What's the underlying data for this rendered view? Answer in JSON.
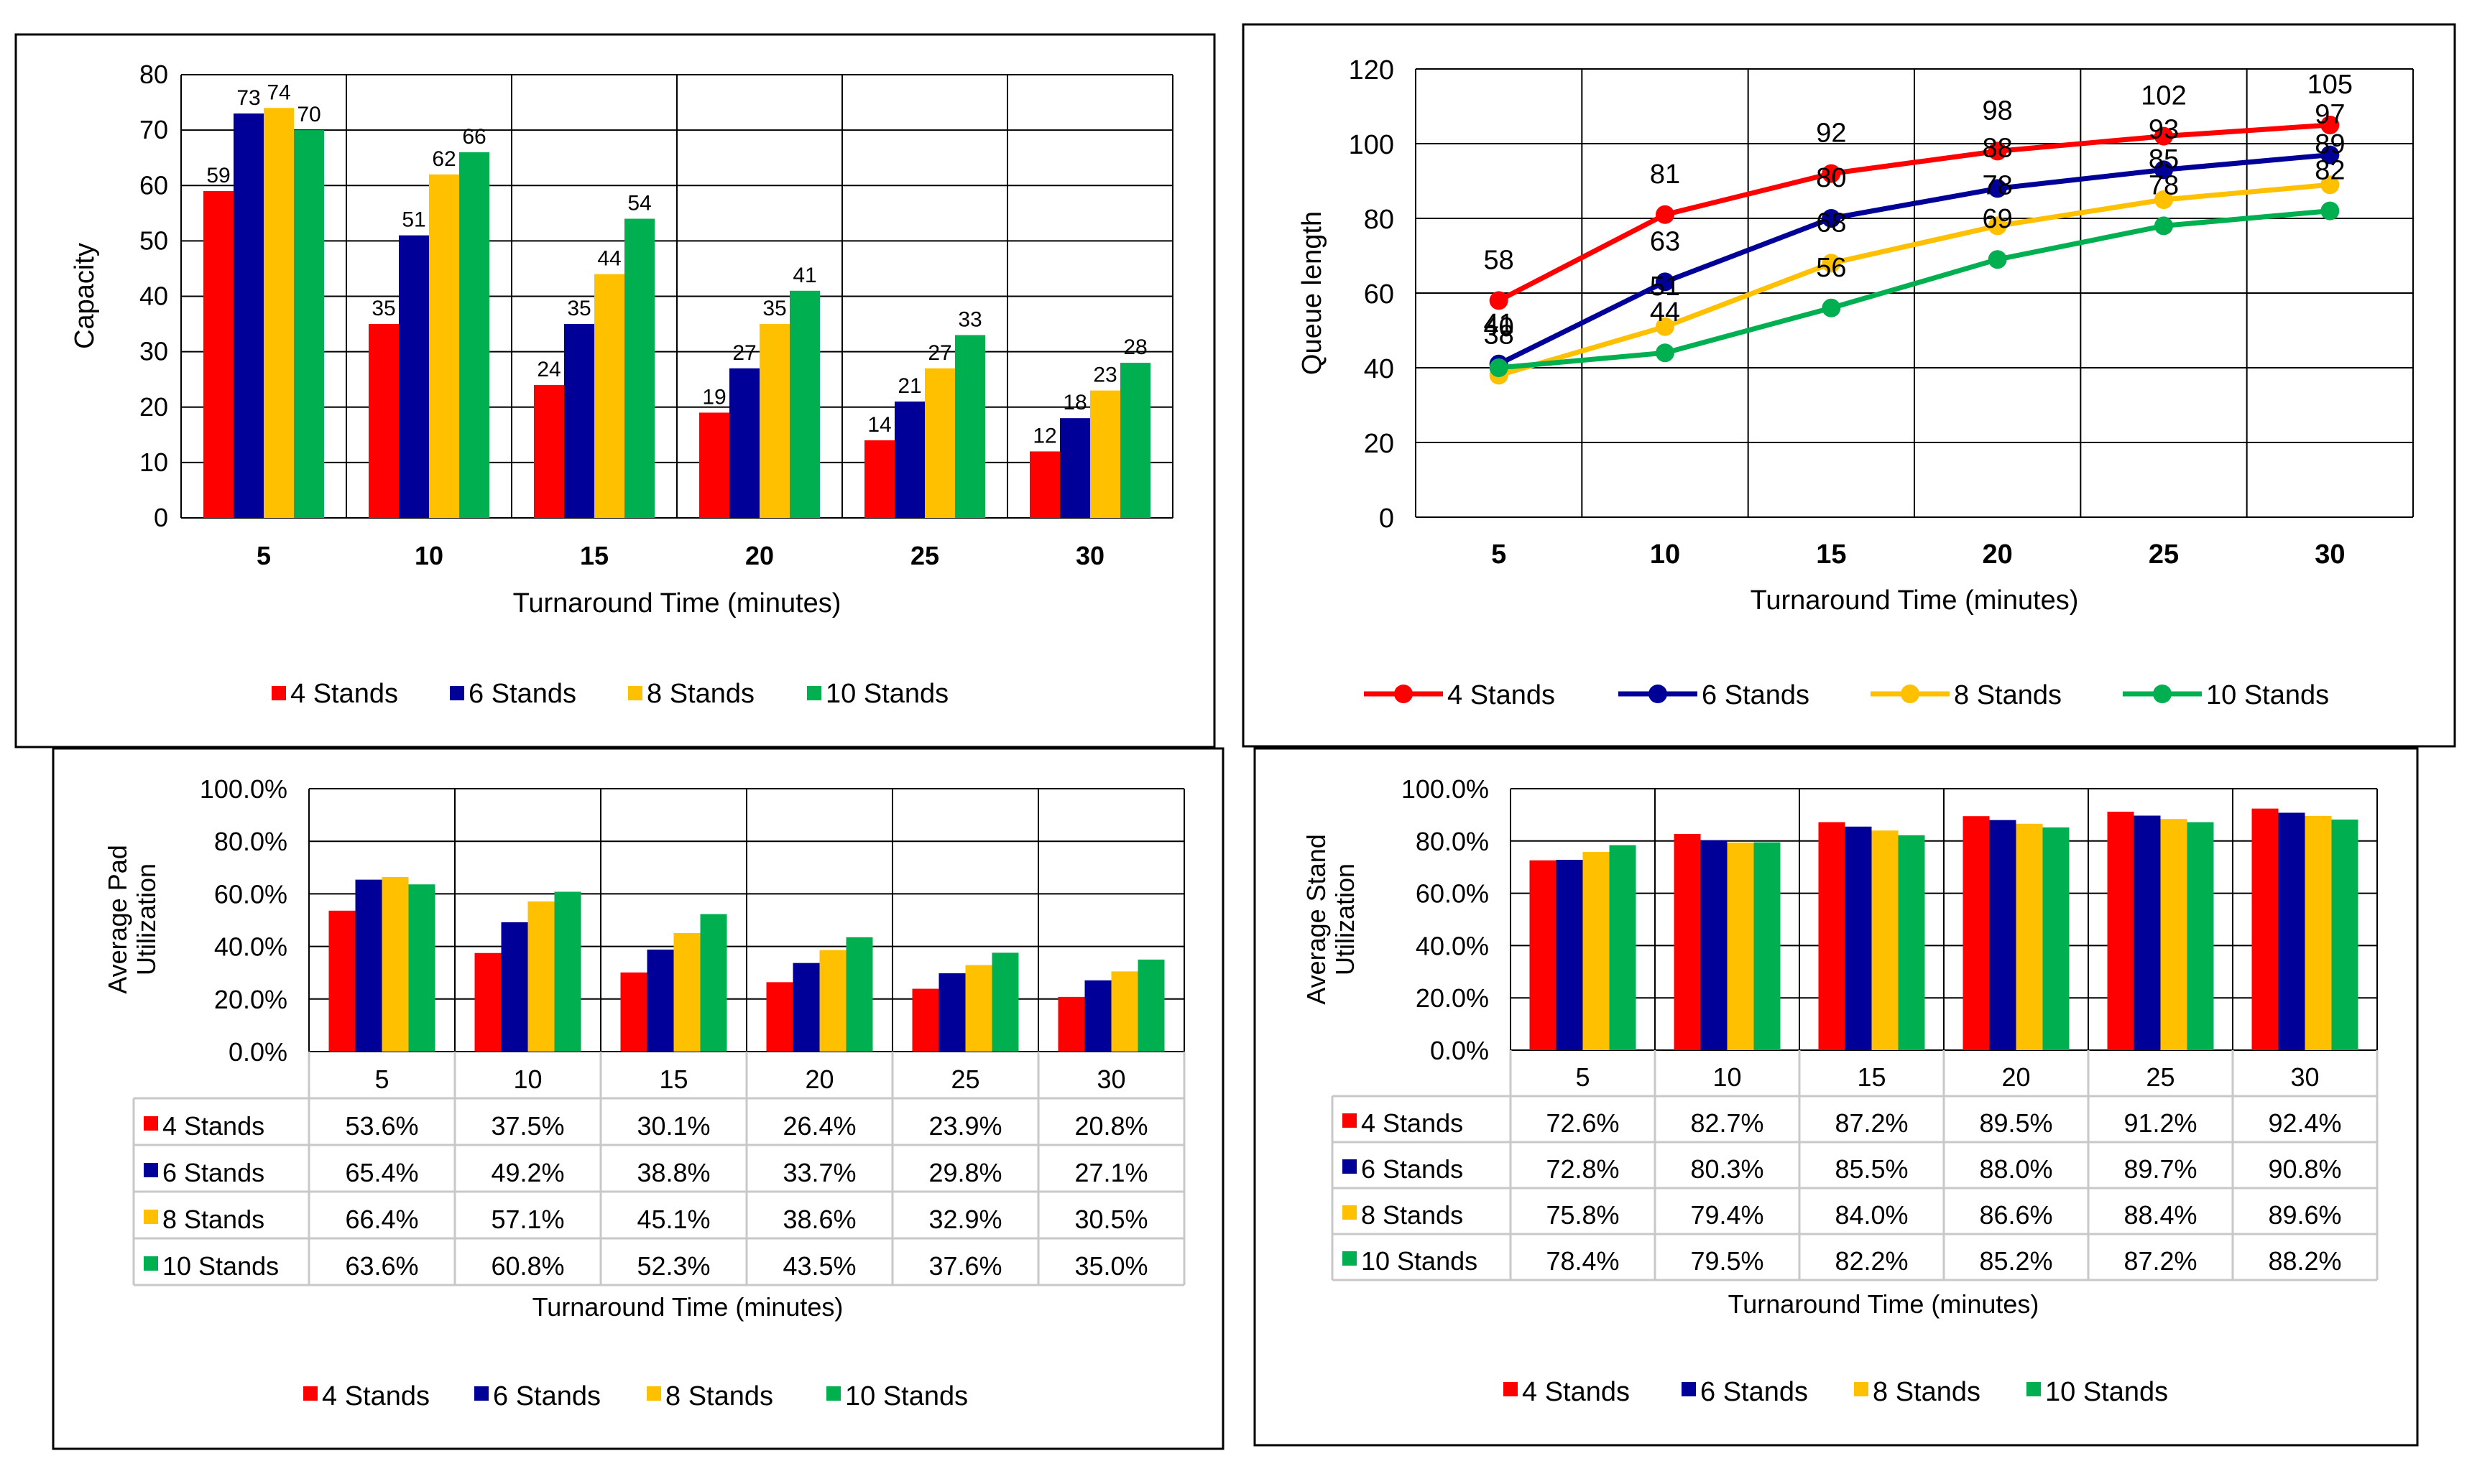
{
  "colors": {
    "s4": "#ff0000",
    "s6": "#000099",
    "s8": "#ffc000",
    "s10": "#00b050"
  },
  "series_names": [
    "4 Stands",
    "6 Stands",
    "8 Stands",
    "10 Stands"
  ],
  "chart_data": [
    {
      "id": "capacity",
      "type": "bar",
      "title": "",
      "xlabel": "Turnaround Time (minutes)",
      "ylabel": "Capacity",
      "categories": [
        "5",
        "10",
        "15",
        "20",
        "25",
        "30"
      ],
      "ylim": [
        0,
        80
      ],
      "yticks": [
        "0",
        "10",
        "20",
        "30",
        "40",
        "50",
        "60",
        "70",
        "80"
      ],
      "series": [
        {
          "name": "4 Stands",
          "values": [
            59,
            35,
            24,
            19,
            14,
            12
          ],
          "labels": [
            "59",
            "35",
            "24",
            "19",
            "14",
            "12"
          ]
        },
        {
          "name": "6 Stands",
          "values": [
            73,
            51,
            35,
            27,
            21,
            18
          ],
          "labels": [
            "73",
            "51",
            "35",
            "27",
            "21",
            "18"
          ]
        },
        {
          "name": "8 Stands",
          "values": [
            74,
            62,
            44,
            35,
            27,
            23
          ],
          "labels": [
            "74",
            "62",
            "44",
            "35",
            "27",
            "23"
          ]
        },
        {
          "name": "10 Stands",
          "values": [
            70,
            66,
            54,
            41,
            33,
            28
          ],
          "labels": [
            "70",
            "66",
            "54",
            "41",
            "33",
            "28"
          ]
        }
      ],
      "legend": "bottom"
    },
    {
      "id": "queue",
      "type": "line",
      "title": "",
      "xlabel": "Turnaround Time (minutes)",
      "ylabel": "Queue length",
      "categories": [
        "5",
        "10",
        "15",
        "20",
        "25",
        "30"
      ],
      "ylim": [
        0,
        120
      ],
      "yticks": [
        "0",
        "20",
        "40",
        "60",
        "80",
        "100",
        "120"
      ],
      "series": [
        {
          "name": "4 Stands",
          "values": [
            58,
            81,
            92,
            98,
            102,
            105
          ],
          "labels": [
            "58",
            "81",
            "92",
            "98",
            "102",
            "105"
          ]
        },
        {
          "name": "6 Stands",
          "values": [
            41,
            63,
            80,
            88,
            93,
            97
          ],
          "labels": [
            "41",
            "63",
            "80",
            "88",
            "93",
            "97"
          ]
        },
        {
          "name": "8 Stands",
          "values": [
            38,
            51,
            68,
            78,
            85,
            89
          ],
          "labels": [
            "38",
            "51",
            "68",
            "78",
            "85",
            "89"
          ]
        },
        {
          "name": "10 Stands",
          "values": [
            40,
            44,
            56,
            69,
            78,
            82
          ],
          "labels": [
            "40",
            "44",
            "56",
            "69",
            "78",
            "82"
          ]
        }
      ],
      "legend": "bottom"
    },
    {
      "id": "pad",
      "type": "bar",
      "title": "",
      "xlabel": "Turnaround Time (minutes)",
      "ylabel": "Average Pad Utilization",
      "ylabel_lines": [
        "Average Pad",
        "Utilization"
      ],
      "categories": [
        "5",
        "10",
        "15",
        "20",
        "25",
        "30"
      ],
      "ylim": [
        0,
        100
      ],
      "yticks": [
        "0.0%",
        "20.0%",
        "40.0%",
        "60.0%",
        "80.0%",
        "100.0%"
      ],
      "series": [
        {
          "name": "4 Stands",
          "values": [
            53.6,
            37.5,
            30.1,
            26.4,
            23.9,
            20.8
          ],
          "labels": [
            "53.6%",
            "37.5%",
            "30.1%",
            "26.4%",
            "23.9%",
            "20.8%"
          ]
        },
        {
          "name": "6 Stands",
          "values": [
            65.4,
            49.2,
            38.8,
            33.7,
            29.8,
            27.1
          ],
          "labels": [
            "65.4%",
            "49.2%",
            "38.8%",
            "33.7%",
            "29.8%",
            "27.1%"
          ]
        },
        {
          "name": "8 Stands",
          "values": [
            66.4,
            57.1,
            45.1,
            38.6,
            32.9,
            30.5
          ],
          "labels": [
            "66.4%",
            "57.1%",
            "45.1%",
            "38.6%",
            "32.9%",
            "30.5%"
          ]
        },
        {
          "name": "10 Stands",
          "values": [
            63.6,
            60.8,
            52.3,
            43.5,
            37.6,
            35.0
          ],
          "labels": [
            "63.6%",
            "60.8%",
            "52.3%",
            "43.5%",
            "37.6%",
            "35.0%"
          ]
        }
      ],
      "legend": "bottom"
    },
    {
      "id": "stand",
      "type": "bar",
      "title": "",
      "xlabel": "Turnaround Time (minutes)",
      "ylabel": "Average Stand Utilization",
      "ylabel_lines": [
        "Average Stand",
        "Utilization"
      ],
      "categories": [
        "5",
        "10",
        "15",
        "20",
        "25",
        "30"
      ],
      "ylim": [
        0,
        100
      ],
      "yticks": [
        "0.0%",
        "20.0%",
        "40.0%",
        "60.0%",
        "80.0%",
        "100.0%"
      ],
      "series": [
        {
          "name": "4 Stands",
          "values": [
            72.6,
            82.7,
            87.2,
            89.5,
            91.2,
            92.4
          ],
          "labels": [
            "72.6%",
            "82.7%",
            "87.2%",
            "89.5%",
            "91.2%",
            "92.4%"
          ]
        },
        {
          "name": "6 Stands",
          "values": [
            72.8,
            80.3,
            85.5,
            88.0,
            89.7,
            90.8
          ],
          "labels": [
            "72.8%",
            "80.3%",
            "85.5%",
            "88.0%",
            "89.7%",
            "90.8%"
          ]
        },
        {
          "name": "8 Stands",
          "values": [
            75.8,
            79.4,
            84.0,
            86.6,
            88.4,
            89.6
          ],
          "labels": [
            "75.8%",
            "79.4%",
            "84.0%",
            "86.6%",
            "88.4%",
            "89.6%"
          ]
        },
        {
          "name": "10 Stands",
          "values": [
            78.4,
            79.5,
            82.2,
            85.2,
            87.2,
            88.2
          ],
          "labels": [
            "78.4%",
            "79.5%",
            "82.2%",
            "85.2%",
            "87.2%",
            "88.2%"
          ]
        }
      ],
      "legend": "bottom"
    }
  ]
}
